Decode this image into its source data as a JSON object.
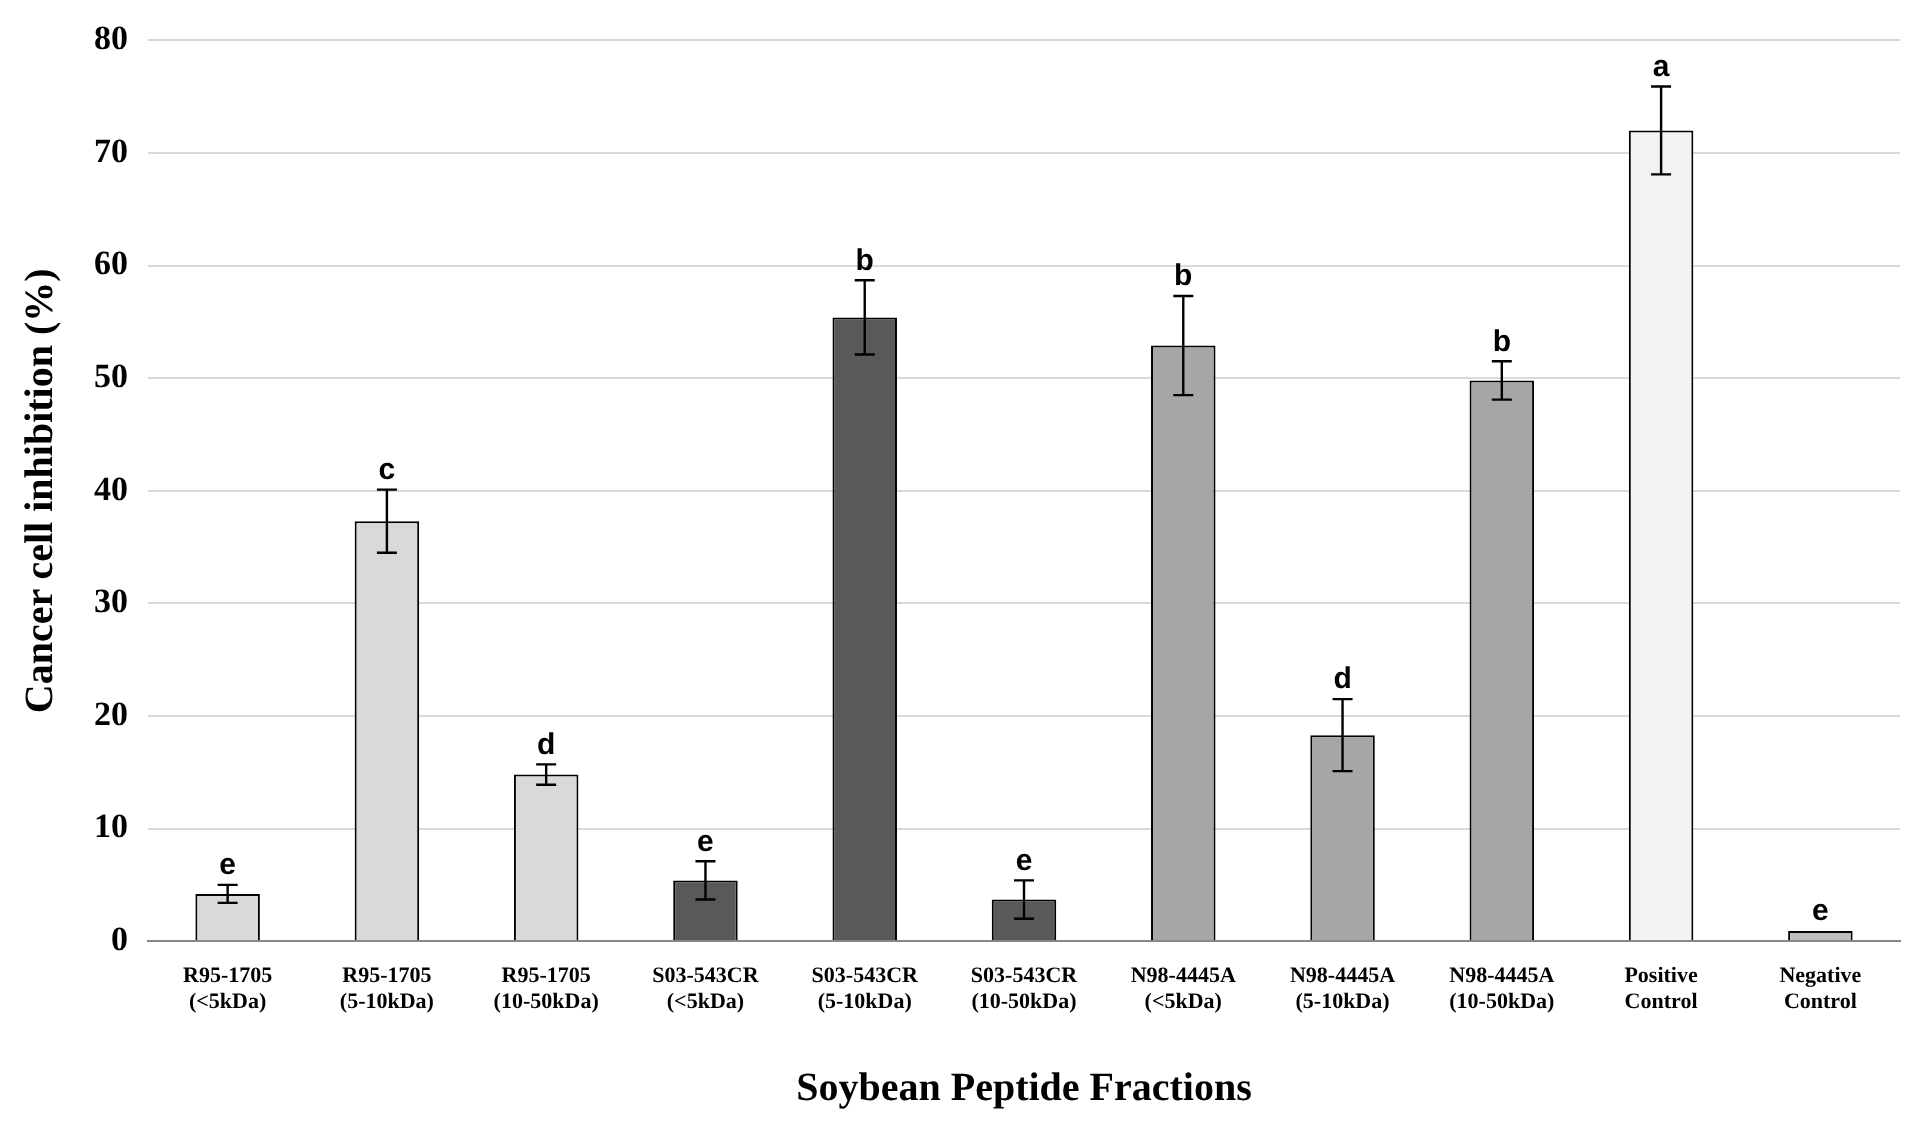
{
  "chart_data": {
    "type": "bar",
    "xlabel": "Soybean Peptide Fractions",
    "ylabel": "Cancer cell inhibition (%)",
    "categories": [
      "R95-1705\n(<5kDa)",
      "R95-1705\n(5-10kDa)",
      "R95-1705\n(10-50kDa)",
      "S03-543CR\n(<5kDa)",
      "S03-543CR\n(5-10kDa)",
      "S03-543CR\n(10-50kDa)",
      "N98-4445A\n(<5kDa)",
      "N98-4445A\n(5-10kDa)",
      "N98-4445A\n(10-50kDa)",
      "Positive\nControl",
      "Negative\nControl"
    ],
    "values": [
      4.2,
      37.3,
      14.8,
      5.4,
      55.4,
      3.7,
      52.9,
      18.3,
      49.8,
      72,
      0.9
    ],
    "errors": [
      0.8,
      2.8,
      0.9,
      1.7,
      3.3,
      1.7,
      4.4,
      3.2,
      1.7,
      3.9,
      null
    ],
    "colors": [
      "#d9d9d9",
      "#d9d9d9",
      "#d9d9d9",
      "#595959",
      "#595959",
      "#595959",
      "#a6a6a6",
      "#a6a6a6",
      "#a6a6a6",
      "#f2f2f2",
      "#bfbfbf"
    ],
    "ylim": [
      0,
      80
    ],
    "yticks": [
      0,
      10,
      20,
      30,
      40,
      50,
      60,
      70,
      80
    ],
    "grid": "y",
    "legend": false,
    "annotations": [
      {
        "text": "e",
        "x": "R95-1705\n(<5kDa)",
        "y": 5
      },
      {
        "text": "c",
        "x": "R95-1705\n(5-10kDa)",
        "y": 40.1
      },
      {
        "text": "d",
        "x": "R95-1705\n(10-50kDa)",
        "y": 15.7
      },
      {
        "text": "e",
        "x": "S03-543CR\n(<5kDa)",
        "y": 7.1
      },
      {
        "text": "b",
        "x": "S03-543CR\n(5-10kDa)",
        "y": 58.7
      },
      {
        "text": "e",
        "x": "S03-543CR\n(10-50kDa)",
        "y": 5.4
      },
      {
        "text": "b",
        "x": "N98-4445A\n(<5kDa)",
        "y": 57.3
      },
      {
        "text": "d",
        "x": "N98-4445A\n(5-10kDa)",
        "y": 21.5
      },
      {
        "text": "b",
        "x": "N98-4445A\n(10-50kDa)",
        "y": 51.5
      },
      {
        "text": "a",
        "x": "Positive\nControl",
        "y": 75.9
      },
      {
        "text": "e",
        "x": "Negative\nControl",
        "y": 0.9
      }
    ]
  }
}
